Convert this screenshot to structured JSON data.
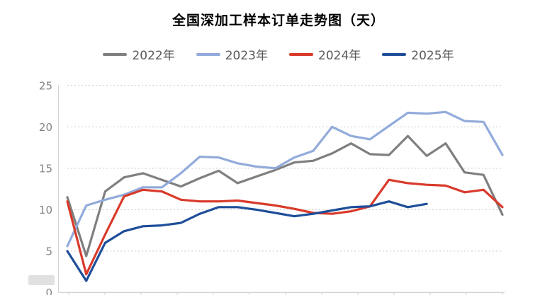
{
  "title": "全国深加工样本订单走势图（天）",
  "legend": {
    "items": [
      {
        "label": "2022年",
        "color": "#7f7f7f"
      },
      {
        "label": "2023年",
        "color": "#92abdb"
      },
      {
        "label": "2024年",
        "color": "#d93a2b"
      },
      {
        "label": "2025年",
        "color": "#1f4e99"
      }
    ]
  },
  "y_axis": {
    "tick_labels": [
      "0",
      "5",
      "10",
      "15",
      "20",
      "25"
    ]
  },
  "chart_data": {
    "type": "line",
    "title": "全国深加工样本订单走势图（天）",
    "ylabel": "",
    "xlabel": "",
    "ylim": [
      0,
      25
    ],
    "y_ticks": [
      0,
      5,
      10,
      15,
      20,
      25
    ],
    "grid": "horizontal-dotted",
    "legend_position": "top",
    "x_axis_labels_visible": false,
    "x_tick_marks": 13,
    "points_are_semimonthly": true,
    "series": [
      {
        "name": "2022年",
        "color": "#7f7f7f",
        "values": [
          11.5,
          4.4,
          12.2,
          13.9,
          14.4,
          13.6,
          12.8,
          13.8,
          14.7,
          13.2,
          14.0,
          14.8,
          15.7,
          15.9,
          16.8,
          18.0,
          16.7,
          16.6,
          18.9,
          16.5,
          18.0,
          14.5,
          14.2,
          9.4
        ]
      },
      {
        "name": "2023年",
        "color": "#92abdb",
        "values": [
          5.6,
          10.5,
          11.2,
          11.8,
          12.7,
          12.7,
          14.4,
          16.4,
          16.3,
          15.6,
          15.2,
          15.0,
          16.3,
          17.1,
          20.0,
          18.9,
          18.5,
          20.1,
          21.7,
          21.6,
          21.8,
          20.7,
          20.6,
          16.6
        ]
      },
      {
        "name": "2024年",
        "color": "#d93a2b",
        "values": [
          11.0,
          2.2,
          7.0,
          11.6,
          12.4,
          12.2,
          11.2,
          11.0,
          11.0,
          11.1,
          10.8,
          10.5,
          10.1,
          9.6,
          9.5,
          9.8,
          10.4,
          13.6,
          13.2,
          13.0,
          12.9,
          12.1,
          12.4,
          10.3
        ]
      },
      {
        "name": "2025年",
        "color": "#1f4e99",
        "values": [
          5.0,
          1.4,
          6.0,
          7.4,
          8.0,
          8.1,
          8.4,
          9.5,
          10.3,
          10.3,
          10.0,
          9.6,
          9.2,
          9.5,
          9.9,
          10.3,
          10.4,
          11.0,
          10.3,
          10.7
        ]
      }
    ]
  },
  "colors": {
    "grid": "#c9c9c9",
    "axis": "#d2d2d2",
    "axis_labels": "#858585",
    "legend_text": "#595959",
    "title_text": "#000000",
    "background": "#ffffff"
  }
}
